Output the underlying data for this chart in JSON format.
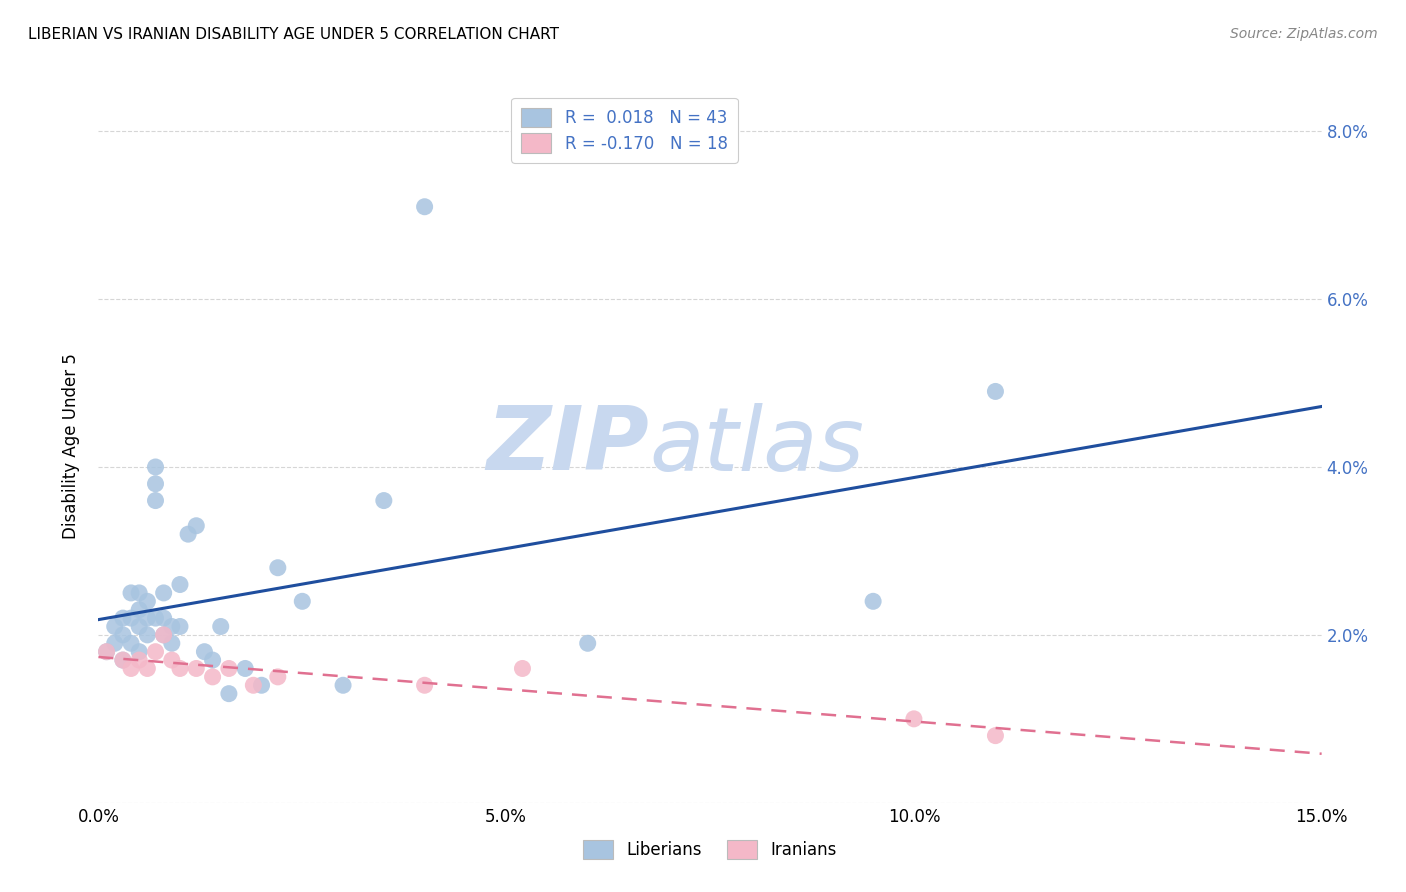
{
  "title": "LIBERIAN VS IRANIAN DISABILITY AGE UNDER 5 CORRELATION CHART",
  "source": "Source: ZipAtlas.com",
  "ylabel": "Disability Age Under 5",
  "xlim": [
    0.0,
    0.15
  ],
  "ylim": [
    0.0,
    0.085
  ],
  "xticks": [
    0.0,
    0.05,
    0.1,
    0.15
  ],
  "xtick_labels": [
    "0.0%",
    "5.0%",
    "10.0%",
    "15.0%"
  ],
  "yticks": [
    0.0,
    0.02,
    0.04,
    0.06,
    0.08
  ],
  "ytick_labels_right": [
    "",
    "2.0%",
    "4.0%",
    "6.0%",
    "8.0%"
  ],
  "liberian_R": 0.018,
  "liberian_N": 43,
  "iranian_R": -0.17,
  "iranian_N": 18,
  "liberian_color": "#a8c4e0",
  "iranian_color": "#f4b8c8",
  "liberian_line_color": "#1f4e9e",
  "iranian_line_color": "#e07090",
  "liberian_x": [
    0.001,
    0.002,
    0.002,
    0.003,
    0.003,
    0.003,
    0.004,
    0.004,
    0.004,
    0.005,
    0.005,
    0.005,
    0.005,
    0.006,
    0.006,
    0.006,
    0.007,
    0.007,
    0.007,
    0.007,
    0.008,
    0.008,
    0.008,
    0.009,
    0.009,
    0.01,
    0.01,
    0.011,
    0.012,
    0.013,
    0.014,
    0.015,
    0.016,
    0.018,
    0.02,
    0.022,
    0.025,
    0.03,
    0.035,
    0.04,
    0.06,
    0.095,
    0.11
  ],
  "liberian_y": [
    0.018,
    0.021,
    0.019,
    0.022,
    0.02,
    0.017,
    0.025,
    0.022,
    0.019,
    0.025,
    0.023,
    0.021,
    0.018,
    0.024,
    0.022,
    0.02,
    0.04,
    0.038,
    0.036,
    0.022,
    0.025,
    0.022,
    0.02,
    0.021,
    0.019,
    0.026,
    0.021,
    0.032,
    0.033,
    0.018,
    0.017,
    0.021,
    0.013,
    0.016,
    0.014,
    0.028,
    0.024,
    0.014,
    0.036,
    0.071,
    0.019,
    0.024,
    0.049
  ],
  "iranian_x": [
    0.001,
    0.003,
    0.004,
    0.005,
    0.006,
    0.007,
    0.008,
    0.009,
    0.01,
    0.012,
    0.014,
    0.016,
    0.019,
    0.022,
    0.04,
    0.052,
    0.1,
    0.11
  ],
  "iranian_y": [
    0.018,
    0.017,
    0.016,
    0.017,
    0.016,
    0.018,
    0.02,
    0.017,
    0.016,
    0.016,
    0.015,
    0.016,
    0.014,
    0.015,
    0.014,
    0.016,
    0.01,
    0.008
  ],
  "background_color": "#ffffff",
  "grid_color": "#cccccc",
  "watermark_zip": "ZIP",
  "watermark_atlas": "atlas",
  "watermark_color_zip": "#c8d8ef",
  "watermark_color_atlas": "#c8d8ef"
}
